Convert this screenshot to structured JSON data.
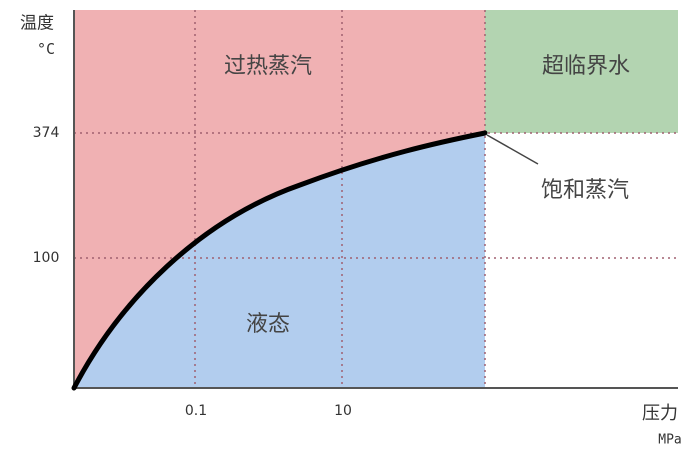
{
  "axes": {
    "y_label": "温度",
    "y_unit": "°C",
    "x_label": "压力",
    "x_unit": "MPa",
    "y_ticks": [
      "374",
      "100"
    ],
    "x_ticks": [
      "0.1",
      "10"
    ]
  },
  "regions": {
    "superheated_steam": "过热蒸汽",
    "supercritical_water": "超临界水",
    "liquid": "液态",
    "saturated_steam": "饱和蒸汽"
  },
  "colors": {
    "superheated": "#f0b1b3",
    "liquid": "#b2cdee",
    "supercritical": "#b3d4b1",
    "curve": "#000000"
  }
}
